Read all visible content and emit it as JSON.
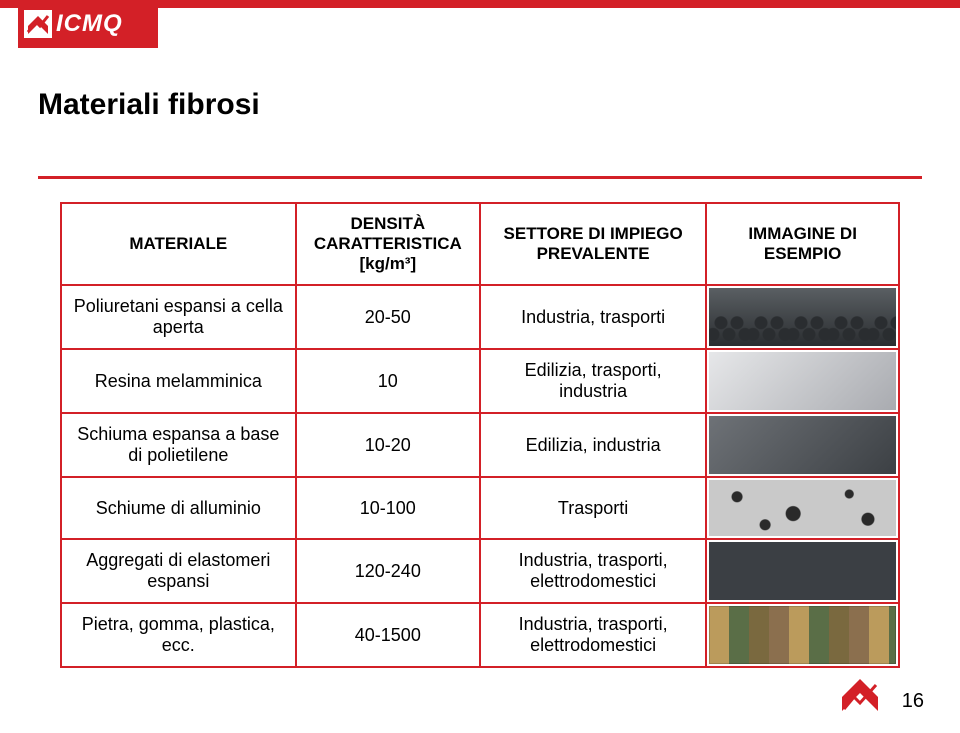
{
  "brand": {
    "name": "ICMQ"
  },
  "title": "Materiali fibrosi",
  "page_number": "16",
  "colors": {
    "accent": "#d32027",
    "text": "#000000",
    "bg": "#ffffff"
  },
  "table": {
    "columns": [
      "MATERIALE",
      "DENSITÀ CARATTERISTICA [kg/m³]",
      "SETTORE DI IMPIEGO PREVALENTE",
      "IMMAGINE DI ESEMPIO"
    ],
    "column_widths_pct": [
      28,
      22,
      27,
      23
    ],
    "rows": [
      {
        "material": "Poliuretani espansi a cella aperta",
        "density": "20-50",
        "sector": "Industria, trasporti",
        "sample_style": {
          "type": "foam-wave",
          "bg1": "#5a5f63",
          "bg2": "#2a2d30"
        }
      },
      {
        "material": "Resina melamminica",
        "density": "10",
        "sector": "Edilizia, trasporti, industria",
        "sample_style": {
          "type": "gradient",
          "bg1": "#e6e7e9",
          "bg2": "#a9abb0"
        }
      },
      {
        "material": "Schiuma espansa a base di polietilene",
        "density": "10-20",
        "sector": "Edilizia, industria",
        "sample_style": {
          "type": "gradient",
          "bg1": "#6e7277",
          "bg2": "#3c4044"
        }
      },
      {
        "material": "Schiume di alluminio",
        "density": "10-100",
        "sector": "Trasporti",
        "sample_style": {
          "type": "porous",
          "bg1": "#c9c9c9",
          "bg2": "#2a2a2a"
        }
      },
      {
        "material": "Aggregati di elastomeri espansi",
        "density": "120-240",
        "sector": "Industria, trasporti, elettrodomestici",
        "sample_style": {
          "type": "flat",
          "bg1": "#3b3f44",
          "bg2": "#3b3f44"
        }
      },
      {
        "material": "Pietra, gomma, plastica, ecc.",
        "density": "40-1500",
        "sector": "Industria, trasporti, elettrodomestici",
        "sample_style": {
          "type": "stone",
          "bg1": "#b89a5e",
          "bg2": "#7a6a42",
          "bg3": "#5c6f4a",
          "bg4": "#8a7050"
        }
      }
    ]
  }
}
